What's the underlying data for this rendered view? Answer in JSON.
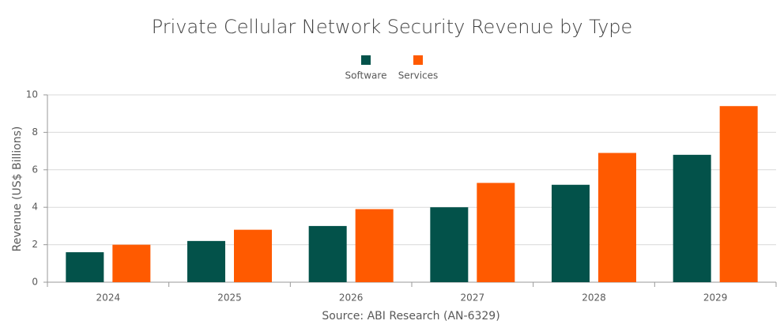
{
  "chart_data": {
    "type": "bar",
    "title": "Private Cellular Network Security Revenue by Type",
    "categories": [
      "2024",
      "2025",
      "2026",
      "2027",
      "2028",
      "2029"
    ],
    "series": [
      {
        "name": "Software",
        "color": "#03524a",
        "values": [
          1.6,
          2.2,
          3.0,
          4.0,
          5.2,
          6.8
        ]
      },
      {
        "name": "Services",
        "color": "#ff5a00",
        "values": [
          2.0,
          2.8,
          3.9,
          5.3,
          6.9,
          9.4
        ]
      }
    ],
    "ylabel": "Revenue (US$ Billions)",
    "xlabel": "Source: ABI Research (AN-6329)",
    "ylim": [
      0,
      10
    ],
    "yticks": [
      0,
      2,
      4,
      6,
      8,
      10
    ],
    "grid": true
  }
}
